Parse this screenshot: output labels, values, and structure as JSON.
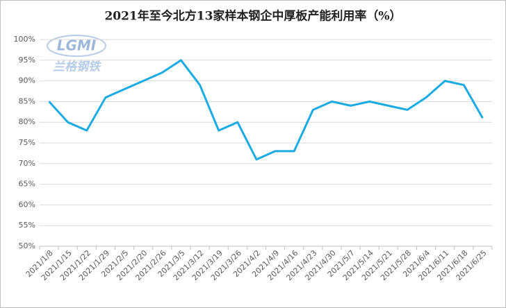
{
  "chart_data": {
    "type": "line",
    "title": "2021年至今北方13家样本钢企中厚板产能利用率（%）",
    "watermark_logo": "LGMI",
    "watermark_text": "兰格钢铁",
    "categories": [
      "2021/1/8",
      "2021/1/15",
      "2021/1/22",
      "2021/1/29",
      "2021/2/5",
      "2021/2/20",
      "2021/2/26",
      "2021/3/5",
      "2021/3/12",
      "2021/3/19",
      "2021/3/26",
      "2021/4/2",
      "2021/4/9",
      "2021/4/16",
      "2021/4/23",
      "2021/4/30",
      "2021/5/7",
      "2021/5/14",
      "2021/5/21",
      "2021/5/28",
      "2021/6/4",
      "2021/6/11",
      "2021/6/18",
      "2021/6/25"
    ],
    "values": [
      85,
      80,
      78,
      86,
      88,
      90,
      92,
      95,
      89,
      78,
      80,
      71,
      73,
      73,
      83,
      85,
      84,
      85,
      84,
      83,
      86,
      90,
      89,
      81
    ],
    "color": "#1aabe3",
    "ylim": [
      50,
      100
    ],
    "yticks": [
      {
        "value": 50,
        "label": "50%"
      },
      {
        "value": 55,
        "label": "55%"
      },
      {
        "value": 60,
        "label": "60%"
      },
      {
        "value": 65,
        "label": "65%"
      },
      {
        "value": 70,
        "label": "70%"
      },
      {
        "value": 75,
        "label": "75%"
      },
      {
        "value": 80,
        "label": "80%"
      },
      {
        "value": 85,
        "label": "85%"
      },
      {
        "value": 90,
        "label": "90%"
      },
      {
        "value": 95,
        "label": "95%"
      },
      {
        "value": 100,
        "label": "100%"
      }
    ],
    "grid": true
  }
}
